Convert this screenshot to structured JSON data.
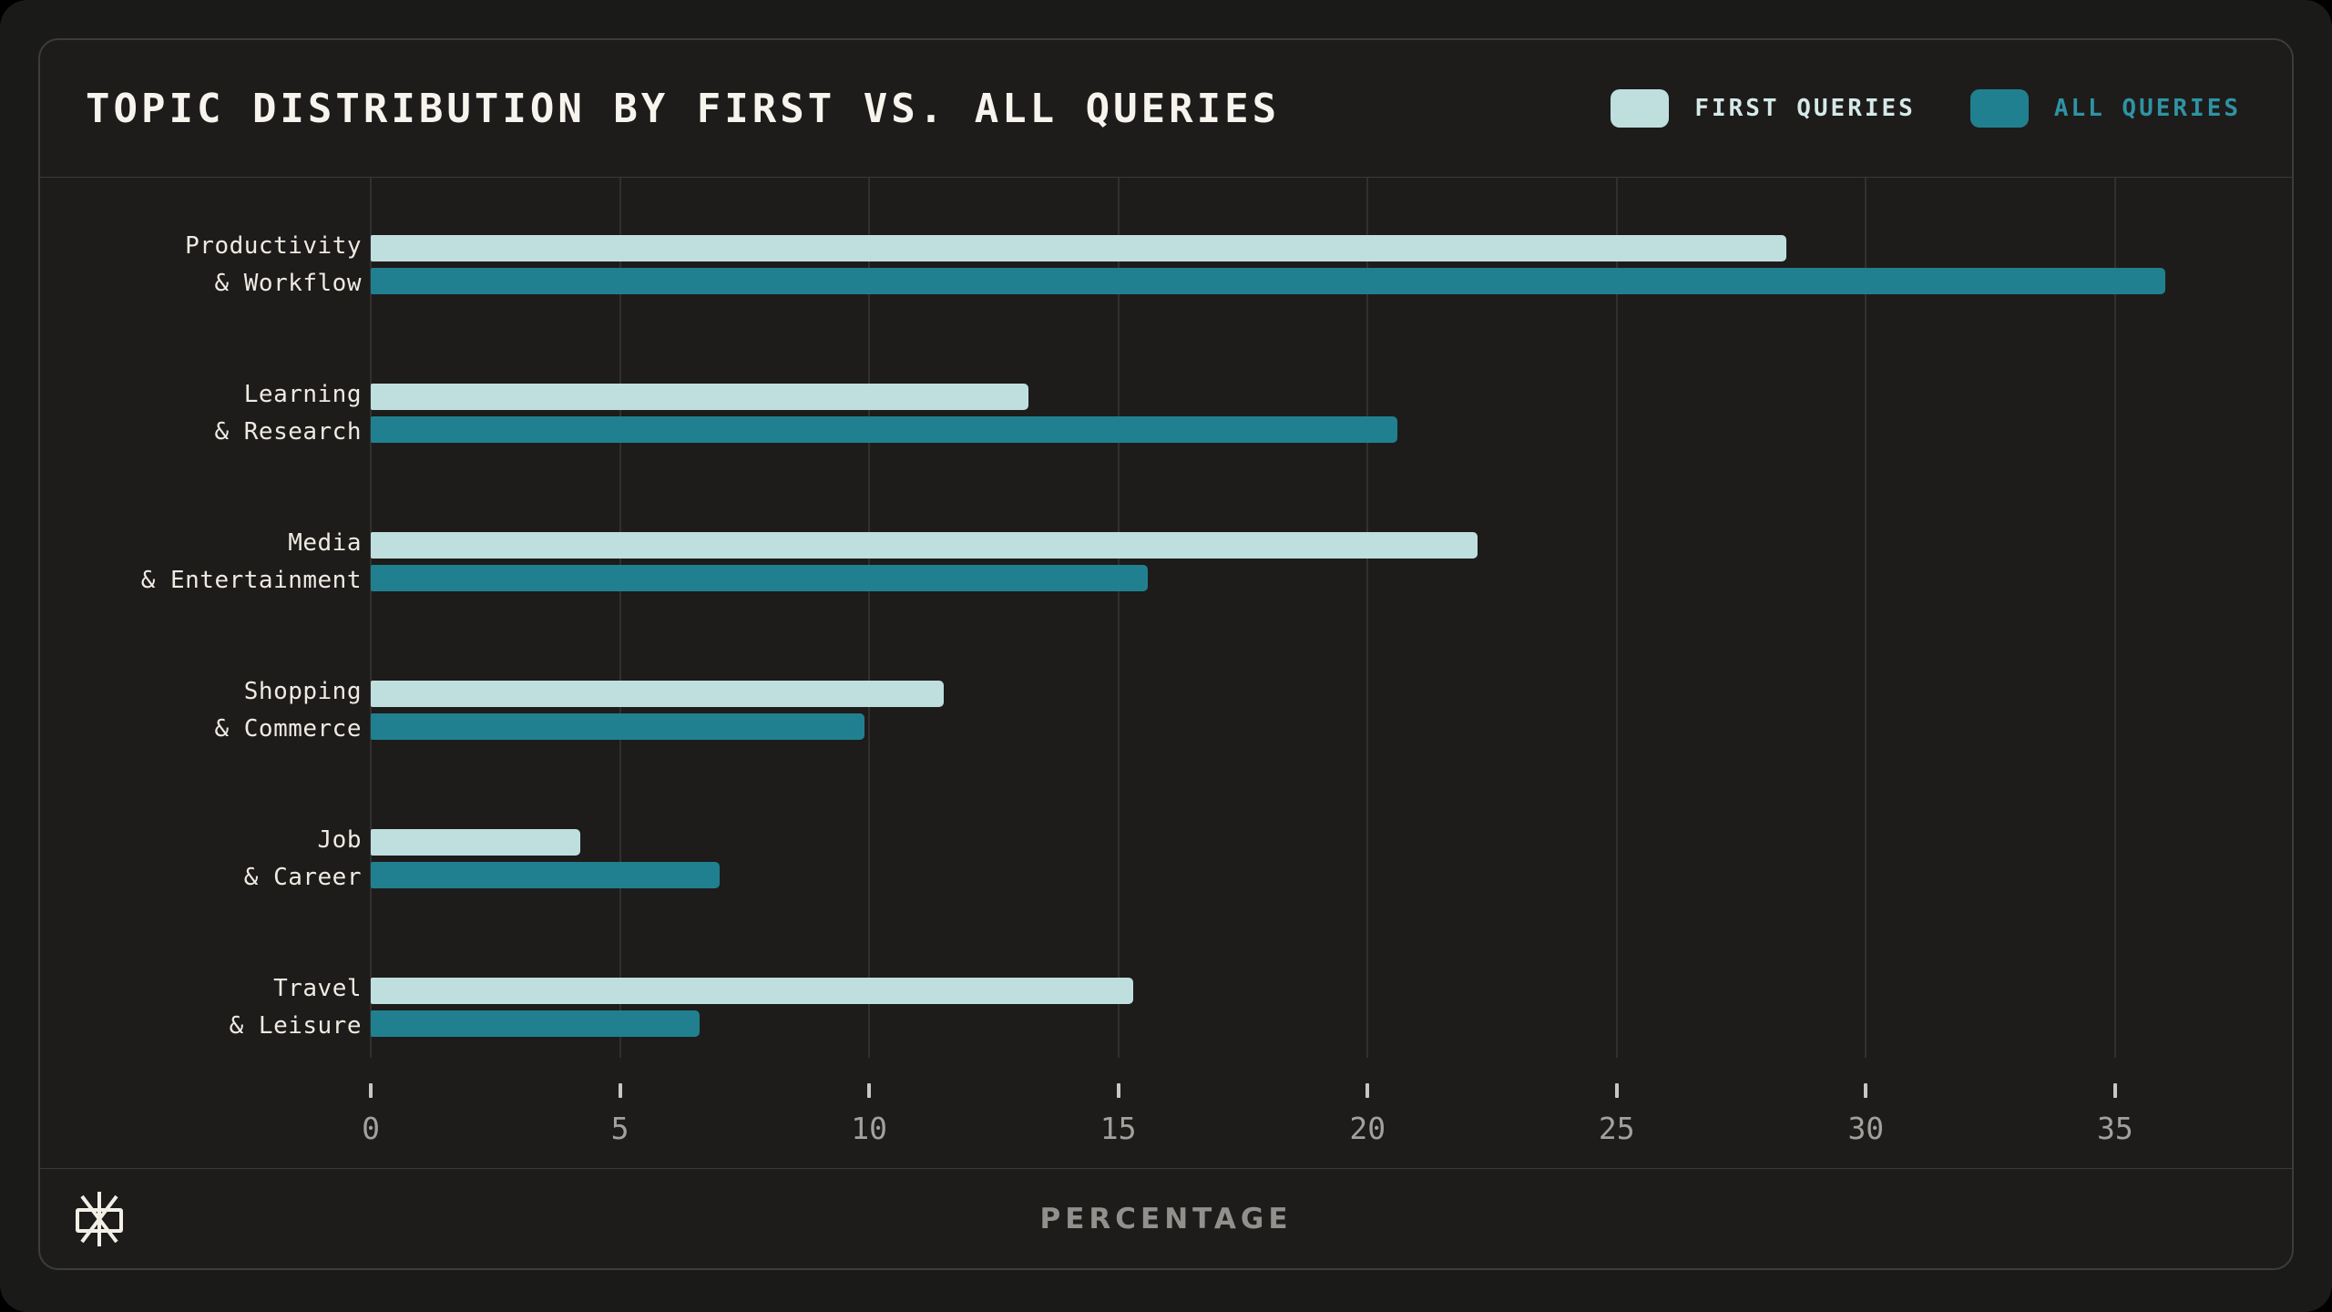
{
  "header": {
    "title": "TOPIC DISTRIBUTION BY FIRST VS. ALL QUERIES"
  },
  "legend": [
    {
      "label": "FIRST QUERIES",
      "swatch_color": "#bfdfde",
      "label_color": "#d5eae8"
    },
    {
      "label": "ALL QUERIES",
      "swatch_color": "#21808f",
      "label_color": "#2f93a3"
    }
  ],
  "chart_data": {
    "type": "bar",
    "orientation": "horizontal",
    "title": "TOPIC DISTRIBUTION BY FIRST VS. ALL QUERIES",
    "categories": [
      [
        "Productivity",
        "& Workflow"
      ],
      [
        "Learning",
        "& Research"
      ],
      [
        "Media",
        "& Entertainment"
      ],
      [
        "Shopping",
        "& Commerce"
      ],
      [
        "Job",
        "& Career"
      ],
      [
        "Travel",
        "& Leisure"
      ]
    ],
    "series": [
      {
        "name": "FIRST QUERIES",
        "color": "#bfdfde",
        "values": [
          28.4,
          13.2,
          22.2,
          11.5,
          4.2,
          15.3
        ]
      },
      {
        "name": "ALL QUERIES",
        "color": "#21808f",
        "values": [
          36.0,
          20.6,
          15.6,
          9.9,
          7.0,
          6.6
        ]
      }
    ],
    "xlabel": "PERCENTAGE",
    "xlim": [
      0,
      38
    ],
    "xticks": [
      0,
      5,
      10,
      15,
      20,
      25,
      30,
      35
    ],
    "grid": true,
    "legend_position": "top-right"
  },
  "footer": {
    "xlabel": "PERCENTAGE",
    "logo": "asterisk-starburst-logo"
  },
  "colors": {
    "page_bg": "#1a1a19",
    "panel_bg": "#1d1c1b",
    "panel_border": "#3d3c3a",
    "grid": "#31302e",
    "title_text": "#f7f4ee",
    "category_text": "#efeae2",
    "tick_text": "#a3a19d",
    "xlabel_text": "#92908c"
  }
}
